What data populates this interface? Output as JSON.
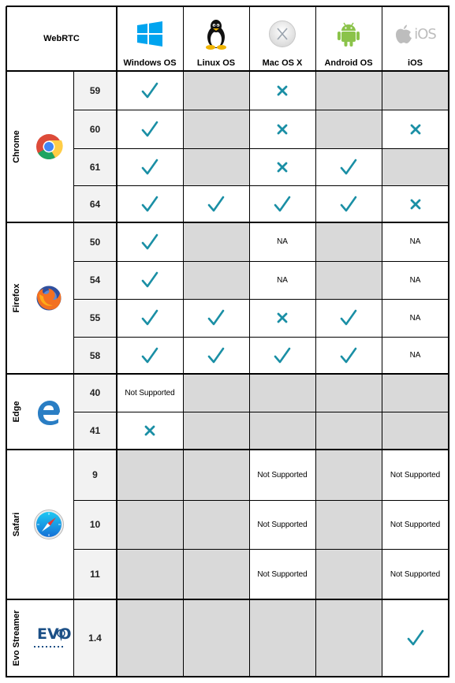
{
  "header": {
    "title": "WebRTC",
    "os": [
      {
        "label": "Windows OS",
        "icon": "windows-icon"
      },
      {
        "label": "Linux OS",
        "icon": "linux-tux-icon"
      },
      {
        "label": "Mac OS X",
        "icon": "macos-x-icon"
      },
      {
        "label": "Android OS",
        "icon": "android-icon"
      },
      {
        "label": "iOS",
        "icon": "apple-ios-icon",
        "icon_text": "iOS"
      }
    ]
  },
  "symbols": {
    "check": "✓",
    "cross": "✕"
  },
  "colors": {
    "mark": "#1a8fa5",
    "unavailable": "#d9d9d9",
    "version_bg": "#f2f2f2"
  },
  "browsers": [
    {
      "name": "Chrome",
      "icon": "chrome-icon",
      "versions": [
        {
          "version": "59",
          "cells": [
            "check",
            "grey",
            "cross",
            "grey",
            "grey"
          ]
        },
        {
          "version": "60",
          "cells": [
            "check",
            "grey",
            "cross",
            "grey",
            "cross"
          ]
        },
        {
          "version": "61",
          "cells": [
            "check",
            "grey",
            "cross",
            "check",
            "grey"
          ]
        },
        {
          "version": "64",
          "cells": [
            "check",
            "check",
            "check",
            "check",
            "cross"
          ]
        }
      ]
    },
    {
      "name": "Firefox",
      "icon": "firefox-icon",
      "versions": [
        {
          "version": "50",
          "cells": [
            "check",
            "grey",
            "NA",
            "grey",
            "NA"
          ]
        },
        {
          "version": "54",
          "cells": [
            "check",
            "grey",
            "NA",
            "grey",
            "NA"
          ]
        },
        {
          "version": "55",
          "cells": [
            "check",
            "check",
            "cross",
            "check",
            "NA"
          ]
        },
        {
          "version": "58",
          "cells": [
            "check",
            "check",
            "check",
            "check",
            "NA"
          ]
        }
      ]
    },
    {
      "name": "Edge",
      "icon": "edge-icon",
      "versions": [
        {
          "version": "40",
          "cells": [
            "Not Supported",
            "grey",
            "grey",
            "grey",
            "grey"
          ]
        },
        {
          "version": "41",
          "cells": [
            "cross",
            "grey",
            "grey",
            "grey",
            "grey"
          ]
        }
      ]
    },
    {
      "name": "Safari",
      "icon": "safari-icon",
      "versions": [
        {
          "version": "9",
          "cells": [
            "grey",
            "grey",
            "Not Supported",
            "grey",
            "Not Supported"
          ]
        },
        {
          "version": "10",
          "cells": [
            "grey",
            "grey",
            "Not Supported",
            "grey",
            "Not Supported"
          ]
        },
        {
          "version": "11",
          "cells": [
            "grey",
            "grey",
            "Not Supported",
            "grey",
            "Not Supported"
          ]
        }
      ]
    },
    {
      "name": "Evo Streamer",
      "icon": "evostream-logo-icon",
      "logo_text": "EVO",
      "versions": [
        {
          "version": "1.4",
          "cells": [
            "grey",
            "grey",
            "grey",
            "grey",
            "check"
          ]
        }
      ]
    }
  ]
}
